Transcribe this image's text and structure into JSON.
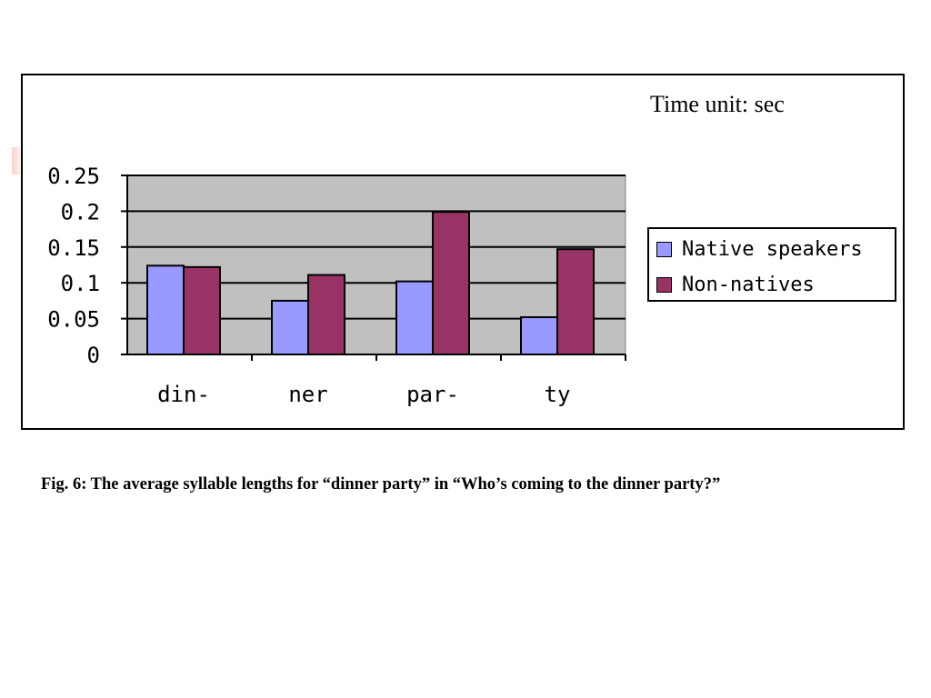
{
  "chart_data": {
    "type": "bar",
    "categories": [
      "din-",
      "ner",
      "par-",
      "ty"
    ],
    "series": [
      {
        "name": "Native speakers",
        "values": [
          0.124,
          0.075,
          0.102,
          0.052
        ]
      },
      {
        "name": "Non-natives",
        "values": [
          0.122,
          0.111,
          0.199,
          0.147
        ]
      }
    ],
    "ylim": [
      0,
      0.25
    ],
    "yticks": [
      0,
      0.05,
      0.1,
      0.15,
      0.2,
      0.25
    ],
    "ytick_labels": [
      "0",
      "0.05",
      "0.1",
      "0.15",
      "0.2",
      "0.25"
    ],
    "grid": true,
    "legend_position": "right",
    "annotation": "Time unit: sec",
    "colors": {
      "series": [
        "#9999ff",
        "#993366"
      ],
      "plot_background": "#c0c0c0",
      "bar_border": "#000000"
    }
  },
  "caption": "Fig. 6: The average syllable lengths for “dinner party” in “Who’s coming to the dinner party?”"
}
